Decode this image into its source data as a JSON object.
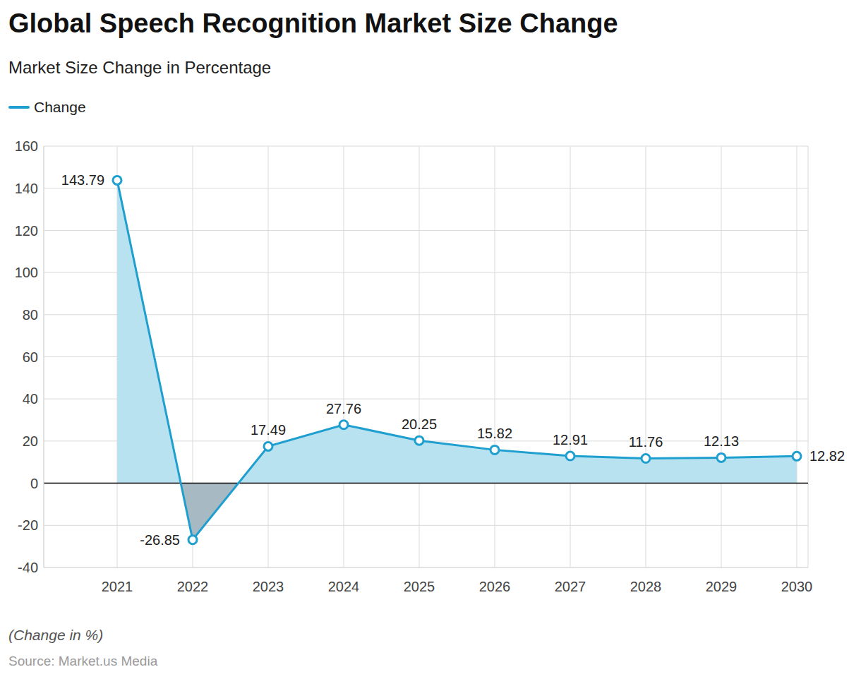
{
  "chart_data": {
    "type": "line",
    "title": "Global Speech Recognition Market Size Change",
    "subtitle": "Market Size Change in Percentage",
    "categories": [
      "2021",
      "2022",
      "2023",
      "2024",
      "2025",
      "2026",
      "2027",
      "2028",
      "2029",
      "2030"
    ],
    "series": [
      {
        "name": "Change",
        "color": "#1f9fcf",
        "values": [
          143.79,
          -26.85,
          17.49,
          27.76,
          20.25,
          15.82,
          12.91,
          11.76,
          12.13,
          12.82
        ]
      }
    ],
    "ylim": [
      -40,
      160
    ],
    "yticks": [
      -40,
      -20,
      0,
      20,
      40,
      60,
      80,
      100,
      120,
      140,
      160
    ],
    "grid": true,
    "data_labels": true,
    "legend": "top left",
    "annotations": [
      "(Change in %)",
      "Source: Market.us Media"
    ]
  }
}
